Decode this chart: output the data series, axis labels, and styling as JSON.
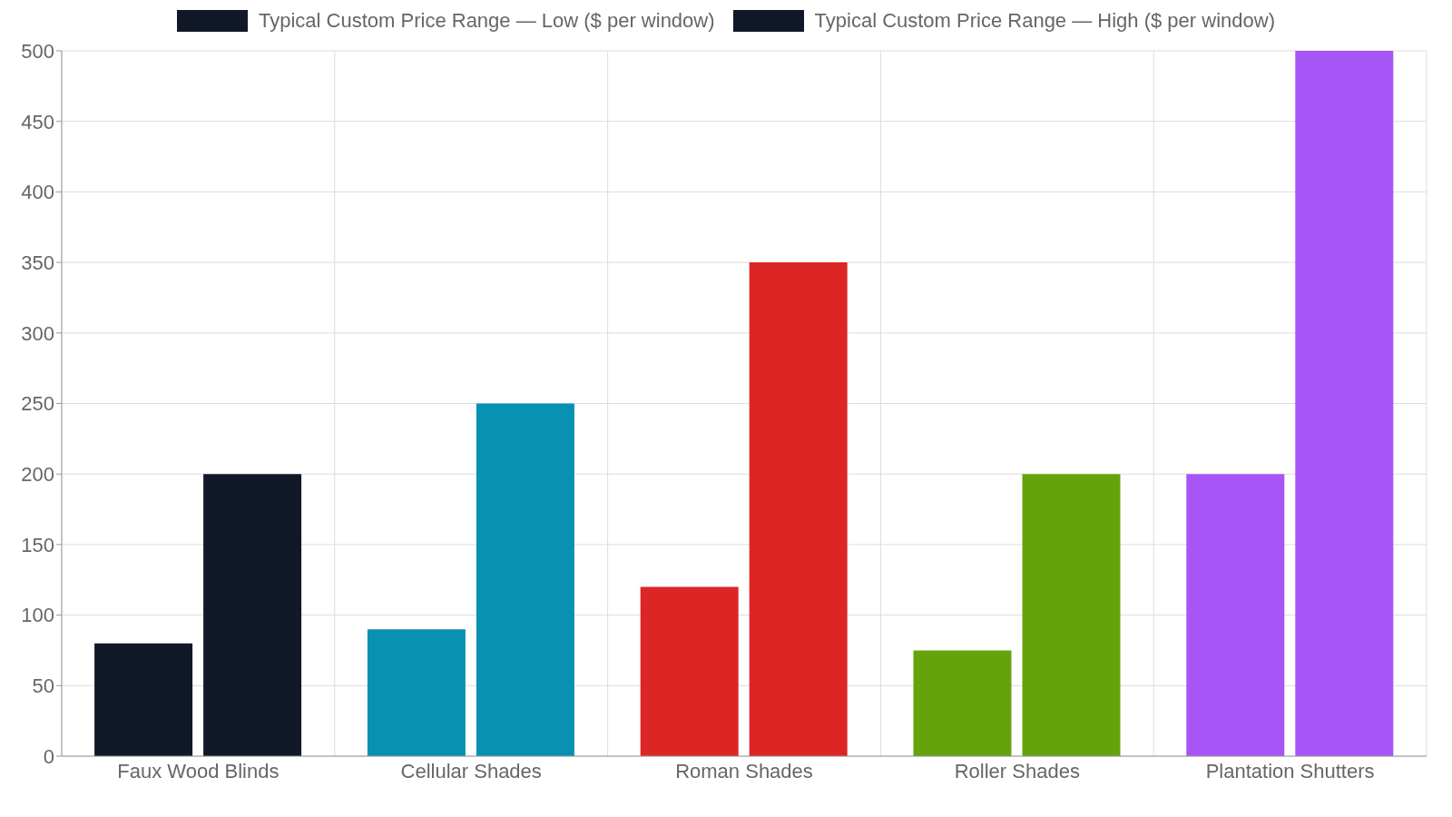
{
  "chart_data": {
    "type": "bar",
    "categories": [
      "Faux Wood Blinds",
      "Cellular Shades",
      "Roman Shades",
      "Roller Shades",
      "Plantation Shutters"
    ],
    "series": [
      {
        "name": "Typical Custom Price Range — Low ($ per window)",
        "color": "#111827",
        "colors": [
          "#111827",
          "#0891b2",
          "#dc2626",
          "#65a30d",
          "#a855f7"
        ],
        "values": [
          80,
          90,
          120,
          75,
          200
        ]
      },
      {
        "name": "Typical Custom Price Range — High ($ per window)",
        "color": "#111827",
        "colors": [
          "#111827",
          "#0891b2",
          "#dc2626",
          "#65a30d",
          "#a855f7"
        ],
        "values": [
          200,
          250,
          350,
          200,
          500
        ]
      }
    ],
    "ylim": [
      0,
      500
    ],
    "yticks": [
      0,
      50,
      100,
      150,
      200,
      250,
      300,
      350,
      400,
      450,
      500
    ],
    "grid": true,
    "legend": "top"
  }
}
